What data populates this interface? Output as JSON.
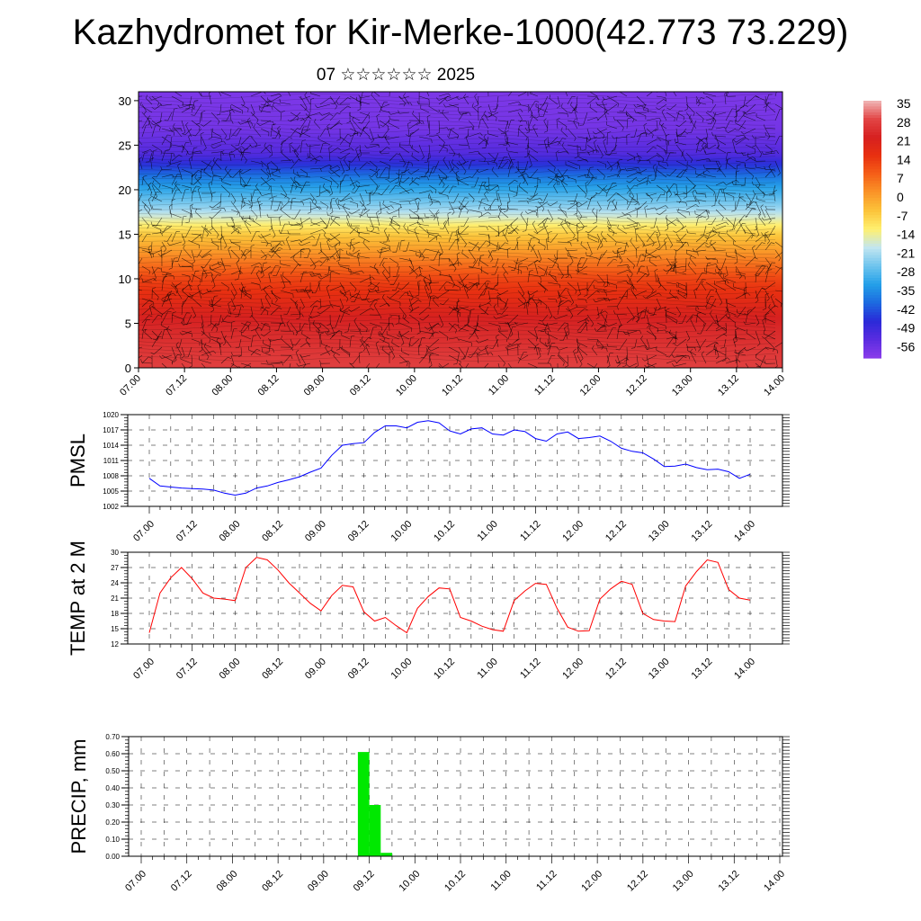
{
  "header": {
    "title": "Kazhydromet for Kir-Merke-1000(42.773 73.229)",
    "date": "07 ☆☆☆☆☆☆ 2025"
  },
  "chart_data": [
    {
      "type": "heatmap",
      "title": "",
      "ylim": [
        0,
        31
      ],
      "yticks": [
        0,
        5,
        10,
        15,
        20,
        25,
        30
      ],
      "xticks": [
        "07.00",
        "07.12",
        "08.00",
        "08.12",
        "09.00",
        "09.12",
        "10.00",
        "10.12",
        "11.00",
        "11.12",
        "12.00",
        "12.12",
        "13.00",
        "13.12",
        "14.00"
      ],
      "colorbar": {
        "labels": [
          "35",
          "28",
          "21",
          "14",
          "7",
          "0",
          "-7",
          "-14",
          "-21",
          "-28",
          "-35",
          "-42",
          "-49",
          "-56"
        ],
        "palette": [
          "#f0b8b8",
          "#e24545",
          "#d62020",
          "#e83010",
          "#f56018",
          "#fa9428",
          "#fcc43a",
          "#fff070",
          "#c2e6f0",
          "#6ec4ee",
          "#24a0e8",
          "#1c6ae0",
          "#2a2ad8",
          "#5a2ce0",
          "#8a3cea"
        ]
      },
      "bands": [
        {
          "level": 0,
          "value": 30
        },
        {
          "level": 5,
          "value": 25
        },
        {
          "level": 10,
          "value": 14
        },
        {
          "level": 15,
          "value": -5
        },
        {
          "level": 18,
          "value": -22
        },
        {
          "level": 21,
          "value": -35
        },
        {
          "level": 24,
          "value": -52
        },
        {
          "level": 27,
          "value": -57
        },
        {
          "level": 31,
          "value": -58
        }
      ],
      "vectors": "wind barbs",
      "grid": false
    },
    {
      "type": "line",
      "ylabel": "PMSL",
      "ylim": [
        1002,
        1020
      ],
      "yticks": [
        1002,
        1005,
        1008,
        1011,
        1014,
        1017,
        1020
      ],
      "xticks": [
        "07.00",
        "07.12",
        "08.00",
        "08.12",
        "09.00",
        "09.12",
        "10.00",
        "10.12",
        "11.00",
        "11.12",
        "12.00",
        "12.12",
        "13.00",
        "13.12",
        "14.00"
      ],
      "grid": true,
      "series": [
        {
          "color": "#0000ff",
          "x": [
            0,
            3,
            6,
            9,
            12,
            15,
            18,
            21,
            24,
            27,
            30,
            33,
            36,
            39,
            42,
            45,
            48,
            51,
            54,
            57,
            60,
            63,
            66,
            69,
            72,
            75,
            78,
            81,
            84,
            87,
            90,
            93,
            96,
            99,
            102,
            105,
            108,
            111,
            114,
            117,
            120,
            123,
            126,
            129,
            132,
            135,
            138,
            141,
            144,
            147,
            150,
            153,
            156,
            159,
            162,
            165,
            168
          ],
          "values": [
            1007.5,
            1006,
            1005.8,
            1005.6,
            1005.5,
            1005.4,
            1005.2,
            1004.6,
            1004.2,
            1004.6,
            1005.6,
            1006,
            1006.7,
            1007.2,
            1007.8,
            1008.7,
            1009.5,
            1012,
            1014,
            1014.3,
            1014.5,
            1016.5,
            1017.8,
            1017.8,
            1017.4,
            1018.5,
            1018.8,
            1018.4,
            1016.8,
            1016.2,
            1017.2,
            1017.4,
            1016.2,
            1016,
            1017,
            1016.7,
            1015.3,
            1014.8,
            1016.2,
            1016.6,
            1015.3,
            1015.5,
            1015.8,
            1014.8,
            1013.4,
            1012.8,
            1012.5,
            1011.3,
            1009.8,
            1009.9,
            1010.3,
            1009.6,
            1009.2,
            1009.3,
            1008.8,
            1007.5,
            1008.3
          ]
        }
      ]
    },
    {
      "type": "line",
      "ylabel": "TEMP at 2 M",
      "ylim": [
        12,
        30
      ],
      "yticks": [
        12,
        15,
        18,
        21,
        24,
        27,
        30
      ],
      "xticks": [
        "07.00",
        "07.12",
        "08.00",
        "08.12",
        "09.00",
        "09.12",
        "10.00",
        "10.12",
        "11.00",
        "11.12",
        "12.00",
        "12.12",
        "13.00",
        "13.12",
        "14.00"
      ],
      "grid": true,
      "series": [
        {
          "color": "#ff0000",
          "x": [
            0,
            3,
            6,
            9,
            12,
            15,
            18,
            21,
            24,
            27,
            30,
            33,
            36,
            39,
            42,
            45,
            48,
            51,
            54,
            57,
            60,
            63,
            66,
            69,
            72,
            75,
            78,
            81,
            84,
            87,
            90,
            93,
            96,
            99,
            102,
            105,
            108,
            111,
            114,
            117,
            120,
            123,
            126,
            129,
            132,
            135,
            138,
            141,
            144,
            147,
            150,
            153,
            156,
            159,
            162,
            165,
            168
          ],
          "values": [
            14.2,
            22,
            25,
            27,
            24.8,
            22,
            21,
            20.8,
            20.5,
            27,
            29,
            28.5,
            26.5,
            24,
            22,
            20,
            18.5,
            21.5,
            23.5,
            23.2,
            18.3,
            16.5,
            17.2,
            15.6,
            14.2,
            19,
            21.3,
            23,
            22.8,
            17.2,
            16.5,
            15.5,
            14.8,
            14.5,
            20.5,
            22.4,
            23.9,
            23.7,
            19,
            15.3,
            14.5,
            14.6,
            20.8,
            22.8,
            24.3,
            23.7,
            18,
            16.8,
            16.5,
            16.4,
            23.4,
            26.2,
            28.5,
            28,
            22.7,
            21,
            20.6
          ]
        }
      ]
    },
    {
      "type": "bar",
      "ylabel": "PRECIP, mm",
      "ylim": [
        0,
        0.7
      ],
      "yticks": [
        "0.00",
        "0.10",
        "0.20",
        "0.30",
        "0.40",
        "0.50",
        "0.60",
        "0.70"
      ],
      "xticks": [
        "07.00",
        "07.12",
        "08.00",
        "08.12",
        "09.00",
        "09.12",
        "10.00",
        "10.12",
        "11.00",
        "11.12",
        "12.00",
        "12.12",
        "13.00",
        "13.12",
        "14.00"
      ],
      "grid": true,
      "bar_color": "#00e800",
      "series": [
        {
          "x": [
            57,
            60,
            63
          ],
          "values": [
            0.61,
            0.3,
            0.02
          ]
        }
      ]
    }
  ]
}
